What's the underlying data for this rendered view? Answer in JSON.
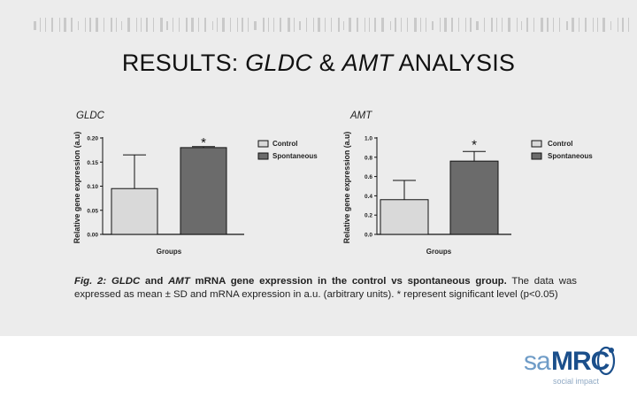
{
  "slide": {
    "title_part1": "RESULTS: ",
    "title_italic1": "GLDC",
    "title_part2": " & ",
    "title_italic2": "AMT",
    "title_part3": " ANALYSIS",
    "caption": {
      "fig_label": "Fig. 2: ",
      "gene1": "GLDC",
      "and": " and ",
      "gene2": "AMT",
      "bold_rest": " mRNA gene expression in the control vs spontaneous group.",
      "text": " The data was expressed as mean ± SD and mRNA expression in a.u. (arbitrary units). * represent significant level (p<0.05)"
    },
    "logo": {
      "sa": "sa",
      "mrc": "MRC",
      "tagline": "social impact"
    },
    "colors": {
      "panel_bg": "#ececec",
      "control_bar": "#d9d9d9",
      "spontaneous_bar": "#6b6b6b",
      "logo_light": "#6f9cc7",
      "logo_dark": "#1b4f8b"
    }
  },
  "chart_data": [
    {
      "type": "bar",
      "title": "GLDC",
      "ylabel": "Relative gene expression (a.u)",
      "xlabel": "Groups",
      "ylim": [
        0,
        0.2
      ],
      "yticks": [
        "0.00",
        "0.05",
        "0.10",
        "0.15",
        "0.20"
      ],
      "categories": [
        "Control",
        "Spontaneous"
      ],
      "values": [
        0.095,
        0.18
      ],
      "error": [
        0.07,
        0.002
      ],
      "significance": [
        null,
        "*"
      ],
      "legend": [
        "Control",
        "Spontaneous"
      ],
      "legend_position": "right"
    },
    {
      "type": "bar",
      "title": "AMT",
      "ylabel": "Relative gene expression (a.u)",
      "xlabel": "Groups",
      "ylim": [
        0,
        1.0
      ],
      "yticks": [
        "0.0",
        "0.2",
        "0.4",
        "0.6",
        "0.8",
        "1.0"
      ],
      "categories": [
        "Control",
        "Spontaneous"
      ],
      "values": [
        0.36,
        0.76
      ],
      "error": [
        0.2,
        0.1
      ],
      "significance": [
        null,
        "*"
      ],
      "legend": [
        "Control",
        "Spontaneous"
      ],
      "legend_position": "right"
    }
  ]
}
